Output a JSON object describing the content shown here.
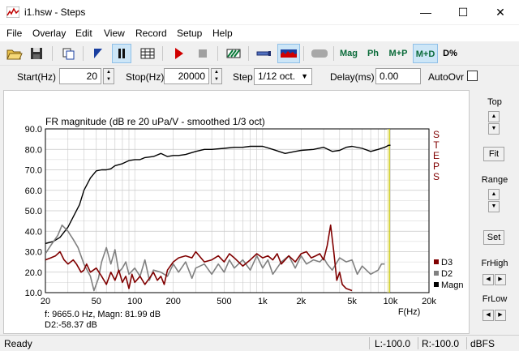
{
  "window": {
    "title": "i1.hsw - Steps",
    "minimize": "—",
    "maximize": "☐",
    "close": "✕"
  },
  "menu": [
    "File",
    "Overlay",
    "Edit",
    "View",
    "Record",
    "Setup",
    "Help"
  ],
  "toolbar": {
    "mag": "Mag",
    "ph": "Ph",
    "mp": "M+P",
    "md": "M+D",
    "dpct": "D%"
  },
  "controls": {
    "start_label": "Start(Hz)",
    "start_value": "20",
    "stop_label": "Stop(Hz)",
    "stop_value": "20000",
    "step_label": "Step",
    "step_value": "1/12 oct.",
    "delay_label": "Delay(ms)",
    "delay_value": "0.00",
    "autoovr_label": "AutoOvr"
  },
  "right_panel": {
    "top_label": "Top",
    "fit_label": "Fit",
    "range_label": "Range",
    "set_label": "Set",
    "frhigh_label": "FrHigh",
    "frlow_label": "FrLow"
  },
  "cursor": {
    "readout1": "f: 9665.0 Hz, Magn: 81.99 dB",
    "readout2": "D2:-58.37 dB"
  },
  "statusbar": {
    "ready": "Ready",
    "left": "L:-100.0",
    "right": "R:-100.0",
    "unit": "dBFS"
  },
  "colors": {
    "magn": "#000000",
    "d2": "#808080",
    "d3": "#800000",
    "cursor": "#c8c800",
    "grid": "#c8c8c8"
  },
  "chart_data": {
    "type": "line",
    "title": "FR magnitude (dB re 20 uPa/V - smoothed 1/3 oct)",
    "side_label": "S T E P S",
    "xlabel": "F(Hz)",
    "xscale": "log",
    "xlim": [
      20,
      20000
    ],
    "ylim": [
      10,
      90
    ],
    "xticks": [
      {
        "v": 20,
        "t": "20"
      },
      {
        "v": 50,
        "t": "50"
      },
      {
        "v": 100,
        "t": "100"
      },
      {
        "v": 200,
        "t": "200"
      },
      {
        "v": 500,
        "t": "500"
      },
      {
        "v": 1000,
        "t": "1k"
      },
      {
        "v": 2000,
        "t": "2k"
      },
      {
        "v": 5000,
        "t": "5k"
      },
      {
        "v": 10000,
        "t": "10k"
      },
      {
        "v": 20000,
        "t": "20k"
      }
    ],
    "yticks": [
      "90.0",
      "80.0",
      "70.0",
      "60.0",
      "50.0",
      "40.0",
      "30.0",
      "20.0",
      "10.0"
    ],
    "cursor_x": 9665,
    "legend": [
      {
        "name": "D3"
      },
      {
        "name": "D2"
      },
      {
        "name": "Magn"
      }
    ],
    "series": [
      {
        "name": "Magn",
        "color": "#000000",
        "points": [
          [
            20,
            34
          ],
          [
            23,
            35
          ],
          [
            26,
            37
          ],
          [
            30,
            42
          ],
          [
            33,
            47
          ],
          [
            37,
            53
          ],
          [
            40,
            60
          ],
          [
            45,
            66
          ],
          [
            50,
            69.5
          ],
          [
            55,
            70
          ],
          [
            60,
            70
          ],
          [
            65,
            70.5
          ],
          [
            70,
            72
          ],
          [
            80,
            73
          ],
          [
            90,
            74.5
          ],
          [
            100,
            75
          ],
          [
            110,
            75
          ],
          [
            120,
            76
          ],
          [
            140,
            76.5
          ],
          [
            160,
            78
          ],
          [
            180,
            76.5
          ],
          [
            200,
            77
          ],
          [
            220,
            77
          ],
          [
            250,
            77.5
          ],
          [
            300,
            79
          ],
          [
            350,
            80
          ],
          [
            400,
            80
          ],
          [
            500,
            80.5
          ],
          [
            600,
            81
          ],
          [
            700,
            81
          ],
          [
            800,
            81.5
          ],
          [
            900,
            81.5
          ],
          [
            1000,
            81.5
          ],
          [
            1200,
            80
          ],
          [
            1500,
            78
          ],
          [
            1800,
            79
          ],
          [
            2000,
            79.5
          ],
          [
            2500,
            80
          ],
          [
            3000,
            81
          ],
          [
            3500,
            79
          ],
          [
            4000,
            79.5
          ],
          [
            4500,
            81
          ],
          [
            5000,
            81.5
          ],
          [
            6000,
            80.5
          ],
          [
            7000,
            79
          ],
          [
            8000,
            80
          ],
          [
            9000,
            81
          ],
          [
            9665,
            82
          ],
          [
            10000,
            82
          ]
        ]
      },
      {
        "name": "D2",
        "color": "#808080",
        "points": [
          [
            20,
            29
          ],
          [
            22,
            33
          ],
          [
            25,
            38
          ],
          [
            27,
            43
          ],
          [
            30,
            40
          ],
          [
            33,
            36
          ],
          [
            36,
            32
          ],
          [
            40,
            24
          ],
          [
            45,
            18
          ],
          [
            48,
            11
          ],
          [
            52,
            17
          ],
          [
            55,
            25
          ],
          [
            60,
            32
          ],
          [
            65,
            24
          ],
          [
            70,
            31
          ],
          [
            75,
            20
          ],
          [
            80,
            22
          ],
          [
            85,
            25
          ],
          [
            90,
            19
          ],
          [
            100,
            22
          ],
          [
            110,
            18
          ],
          [
            120,
            26
          ],
          [
            130,
            16
          ],
          [
            140,
            21
          ],
          [
            160,
            20
          ],
          [
            180,
            18
          ],
          [
            200,
            24
          ],
          [
            220,
            20
          ],
          [
            250,
            25
          ],
          [
            280,
            17
          ],
          [
            300,
            22
          ],
          [
            350,
            24
          ],
          [
            400,
            19
          ],
          [
            450,
            24
          ],
          [
            500,
            20
          ],
          [
            550,
            26
          ],
          [
            600,
            22
          ],
          [
            700,
            26
          ],
          [
            800,
            21
          ],
          [
            900,
            28
          ],
          [
            1000,
            22
          ],
          [
            1100,
            26
          ],
          [
            1200,
            19
          ],
          [
            1400,
            25
          ],
          [
            1600,
            28
          ],
          [
            1800,
            22
          ],
          [
            2000,
            28
          ],
          [
            2200,
            24
          ],
          [
            2500,
            26
          ],
          [
            2800,
            25
          ],
          [
            3000,
            27
          ],
          [
            3200,
            24
          ],
          [
            3500,
            21
          ],
          [
            4000,
            27
          ],
          [
            4500,
            25
          ],
          [
            5000,
            26
          ],
          [
            5500,
            19
          ],
          [
            6000,
            23
          ],
          [
            7000,
            19
          ],
          [
            8000,
            21
          ],
          [
            8500,
            24
          ],
          [
            9000,
            24
          ]
        ]
      },
      {
        "name": "D3",
        "color": "#800000",
        "points": [
          [
            20,
            26
          ],
          [
            22,
            27
          ],
          [
            24,
            28
          ],
          [
            26,
            30
          ],
          [
            28,
            26
          ],
          [
            30,
            24
          ],
          [
            33,
            26
          ],
          [
            35,
            24
          ],
          [
            38,
            20
          ],
          [
            40,
            21
          ],
          [
            42,
            24
          ],
          [
            45,
            20
          ],
          [
            50,
            22
          ],
          [
            55,
            18
          ],
          [
            60,
            14
          ],
          [
            65,
            20
          ],
          [
            70,
            16
          ],
          [
            75,
            21
          ],
          [
            80,
            15
          ],
          [
            85,
            18
          ],
          [
            90,
            12
          ],
          [
            95,
            19
          ],
          [
            100,
            15
          ],
          [
            110,
            18
          ],
          [
            120,
            14
          ],
          [
            130,
            17
          ],
          [
            140,
            20
          ],
          [
            150,
            16
          ],
          [
            160,
            18
          ],
          [
            170,
            14
          ],
          [
            180,
            21
          ],
          [
            200,
            25
          ],
          [
            220,
            27
          ],
          [
            250,
            28
          ],
          [
            280,
            27
          ],
          [
            300,
            30
          ],
          [
            350,
            25
          ],
          [
            400,
            26
          ],
          [
            450,
            28
          ],
          [
            500,
            25
          ],
          [
            550,
            29
          ],
          [
            600,
            27
          ],
          [
            700,
            23
          ],
          [
            800,
            26
          ],
          [
            900,
            29
          ],
          [
            1000,
            27
          ],
          [
            1100,
            28
          ],
          [
            1200,
            26
          ],
          [
            1300,
            29
          ],
          [
            1400,
            24
          ],
          [
            1500,
            26
          ],
          [
            1600,
            28
          ],
          [
            1800,
            25
          ],
          [
            2000,
            29
          ],
          [
            2200,
            30
          ],
          [
            2400,
            27
          ],
          [
            2600,
            28
          ],
          [
            2800,
            29
          ],
          [
            3000,
            26
          ],
          [
            3200,
            33
          ],
          [
            3400,
            43
          ],
          [
            3600,
            30
          ],
          [
            3800,
            16
          ],
          [
            4000,
            20
          ],
          [
            4200,
            14
          ],
          [
            4500,
            12
          ],
          [
            5000,
            11
          ]
        ]
      }
    ]
  }
}
